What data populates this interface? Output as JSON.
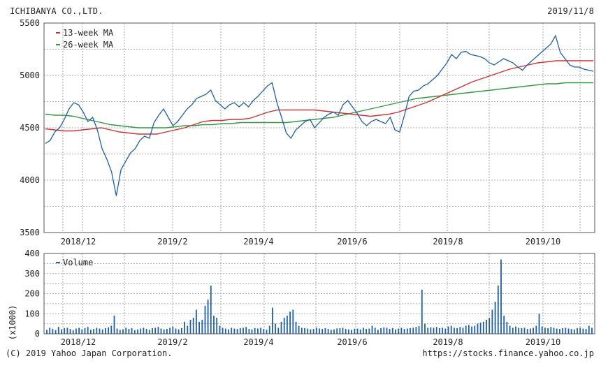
{
  "header": {
    "company": "ICHIBANYA CO.,LTD.",
    "date": "2019/11/8"
  },
  "footer": {
    "copyright": "(C) 2019 Yahoo Japan Corporation.",
    "source": "https://stocks.finance.yahoo.co.jp"
  },
  "colors": {
    "price": "#1f5fa8",
    "ma13": "#cc3333",
    "ma26": "#339944",
    "volume": "#1f5fa8",
    "grid": "#999999"
  },
  "chart_data": [
    {
      "type": "line",
      "x_ticks": [
        "2018/12",
        "2019/2",
        "2019/4",
        "2019/6",
        "2019/8",
        "2019/10"
      ],
      "ylim": [
        3500,
        5500
      ],
      "y_ticks": [
        3500,
        4000,
        4500,
        5000,
        5500
      ],
      "grid": true,
      "legend": {
        "placement": "top-left",
        "entries": [
          "13-week MA",
          "26-week MA"
        ]
      },
      "series": [
        {
          "name": "price",
          "values": [
            4350,
            4380,
            4460,
            4500,
            4580,
            4680,
            4740,
            4720,
            4650,
            4560,
            4600,
            4480,
            4300,
            4200,
            4080,
            3850,
            4100,
            4180,
            4260,
            4300,
            4380,
            4420,
            4400,
            4550,
            4620,
            4680,
            4600,
            4520,
            4560,
            4620,
            4680,
            4720,
            4780,
            4800,
            4820,
            4860,
            4760,
            4720,
            4680,
            4720,
            4740,
            4700,
            4740,
            4700,
            4760,
            4800,
            4850,
            4900,
            4930,
            4740,
            4600,
            4450,
            4400,
            4480,
            4520,
            4560,
            4580,
            4500,
            4550,
            4600,
            4630,
            4650,
            4620,
            4720,
            4760,
            4700,
            4640,
            4560,
            4520,
            4560,
            4580,
            4560,
            4540,
            4600,
            4480,
            4460,
            4620,
            4800,
            4850,
            4860,
            4900,
            4920,
            4960,
            5000,
            5060,
            5120,
            5200,
            5160,
            5220,
            5230,
            5200,
            5190,
            5180,
            5160,
            5120,
            5100,
            5130,
            5160,
            5140,
            5120,
            5080,
            5050,
            5100,
            5140,
            5180,
            5220,
            5260,
            5300,
            5380,
            5220,
            5160,
            5100,
            5080,
            5080,
            5060,
            5050,
            5040
          ]
        },
        {
          "name": "13-week MA",
          "values": [
            4490,
            4480,
            4470,
            4470,
            4480,
            4490,
            4500,
            4480,
            4460,
            4450,
            4440,
            4440,
            4440,
            4460,
            4480,
            4500,
            4530,
            4560,
            4570,
            4570,
            4580,
            4580,
            4590,
            4620,
            4650,
            4670,
            4670,
            4670,
            4670,
            4670,
            4660,
            4650,
            4640,
            4630,
            4620,
            4610,
            4620,
            4630,
            4650,
            4680,
            4710,
            4740,
            4780,
            4820,
            4860,
            4900,
            4940,
            4970,
            5000,
            5030,
            5060,
            5080,
            5100,
            5120,
            5130,
            5140,
            5140,
            5140,
            5140,
            5140
          ]
        },
        {
          "name": "26-week MA",
          "values": [
            4630,
            4620,
            4620,
            4610,
            4590,
            4570,
            4550,
            4530,
            4520,
            4510,
            4500,
            4500,
            4500,
            4500,
            4510,
            4520,
            4520,
            4530,
            4530,
            4540,
            4540,
            4550,
            4550,
            4550,
            4550,
            4550,
            4550,
            4560,
            4570,
            4580,
            4590,
            4600,
            4620,
            4640,
            4660,
            4680,
            4700,
            4720,
            4740,
            4760,
            4780,
            4790,
            4800,
            4810,
            4820,
            4830,
            4840,
            4850,
            4860,
            4870,
            4880,
            4890,
            4900,
            4910,
            4920,
            4920,
            4930,
            4930,
            4930,
            4930
          ]
        }
      ]
    },
    {
      "type": "bar",
      "x_ticks": [
        "2018/12",
        "2019/2",
        "2019/4",
        "2019/6",
        "2019/8",
        "2019/10"
      ],
      "ylim": [
        0,
        400
      ],
      "y_ticks": [
        0,
        100,
        200,
        300,
        400
      ],
      "ylabel": "(x1000)",
      "grid": true,
      "legend": {
        "placement": "top-left",
        "entries": [
          "Volume"
        ]
      },
      "series": [
        {
          "name": "Volume",
          "values": [
            20,
            30,
            25,
            18,
            35,
            22,
            28,
            30,
            24,
            18,
            26,
            30,
            22,
            28,
            34,
            20,
            24,
            30,
            26,
            22,
            28,
            32,
            40,
            90,
            26,
            20,
            22,
            30,
            24,
            28,
            18,
            22,
            26,
            30,
            24,
            20,
            28,
            30,
            34,
            26,
            22,
            24,
            30,
            36,
            26,
            22,
            28,
            60,
            40,
            70,
            80,
            120,
            60,
            70,
            140,
            170,
            240,
            90,
            80,
            40,
            30,
            26,
            22,
            30,
            26,
            24,
            28,
            30,
            34,
            24,
            22,
            28,
            26,
            30,
            24,
            20,
            40,
            130,
            50,
            30,
            60,
            80,
            90,
            110,
            120,
            60,
            40,
            30,
            28,
            26,
            22,
            24,
            30,
            26,
            24,
            28,
            24,
            20,
            22,
            26,
            28,
            30,
            24,
            22,
            20,
            25,
            26,
            22,
            30,
            24,
            26,
            40,
            30,
            20,
            28,
            32,
            30,
            24,
            28,
            22,
            26,
            30,
            24,
            26,
            28,
            30,
            34,
            38,
            220,
            50,
            30,
            32,
            30,
            34,
            28,
            30,
            26,
            36,
            40,
            30,
            28,
            34,
            30,
            40,
            44,
            36,
            40,
            50,
            56,
            60,
            70,
            80,
            120,
            160,
            240,
            370,
            90,
            60,
            40,
            30,
            36,
            30,
            28,
            30,
            24,
            26,
            30,
            40,
            100,
            36,
            30,
            28,
            34,
            30,
            26,
            24,
            28,
            30,
            26,
            24,
            22,
            28,
            30,
            26,
            24,
            40,
            30
          ]
        }
      ]
    }
  ]
}
